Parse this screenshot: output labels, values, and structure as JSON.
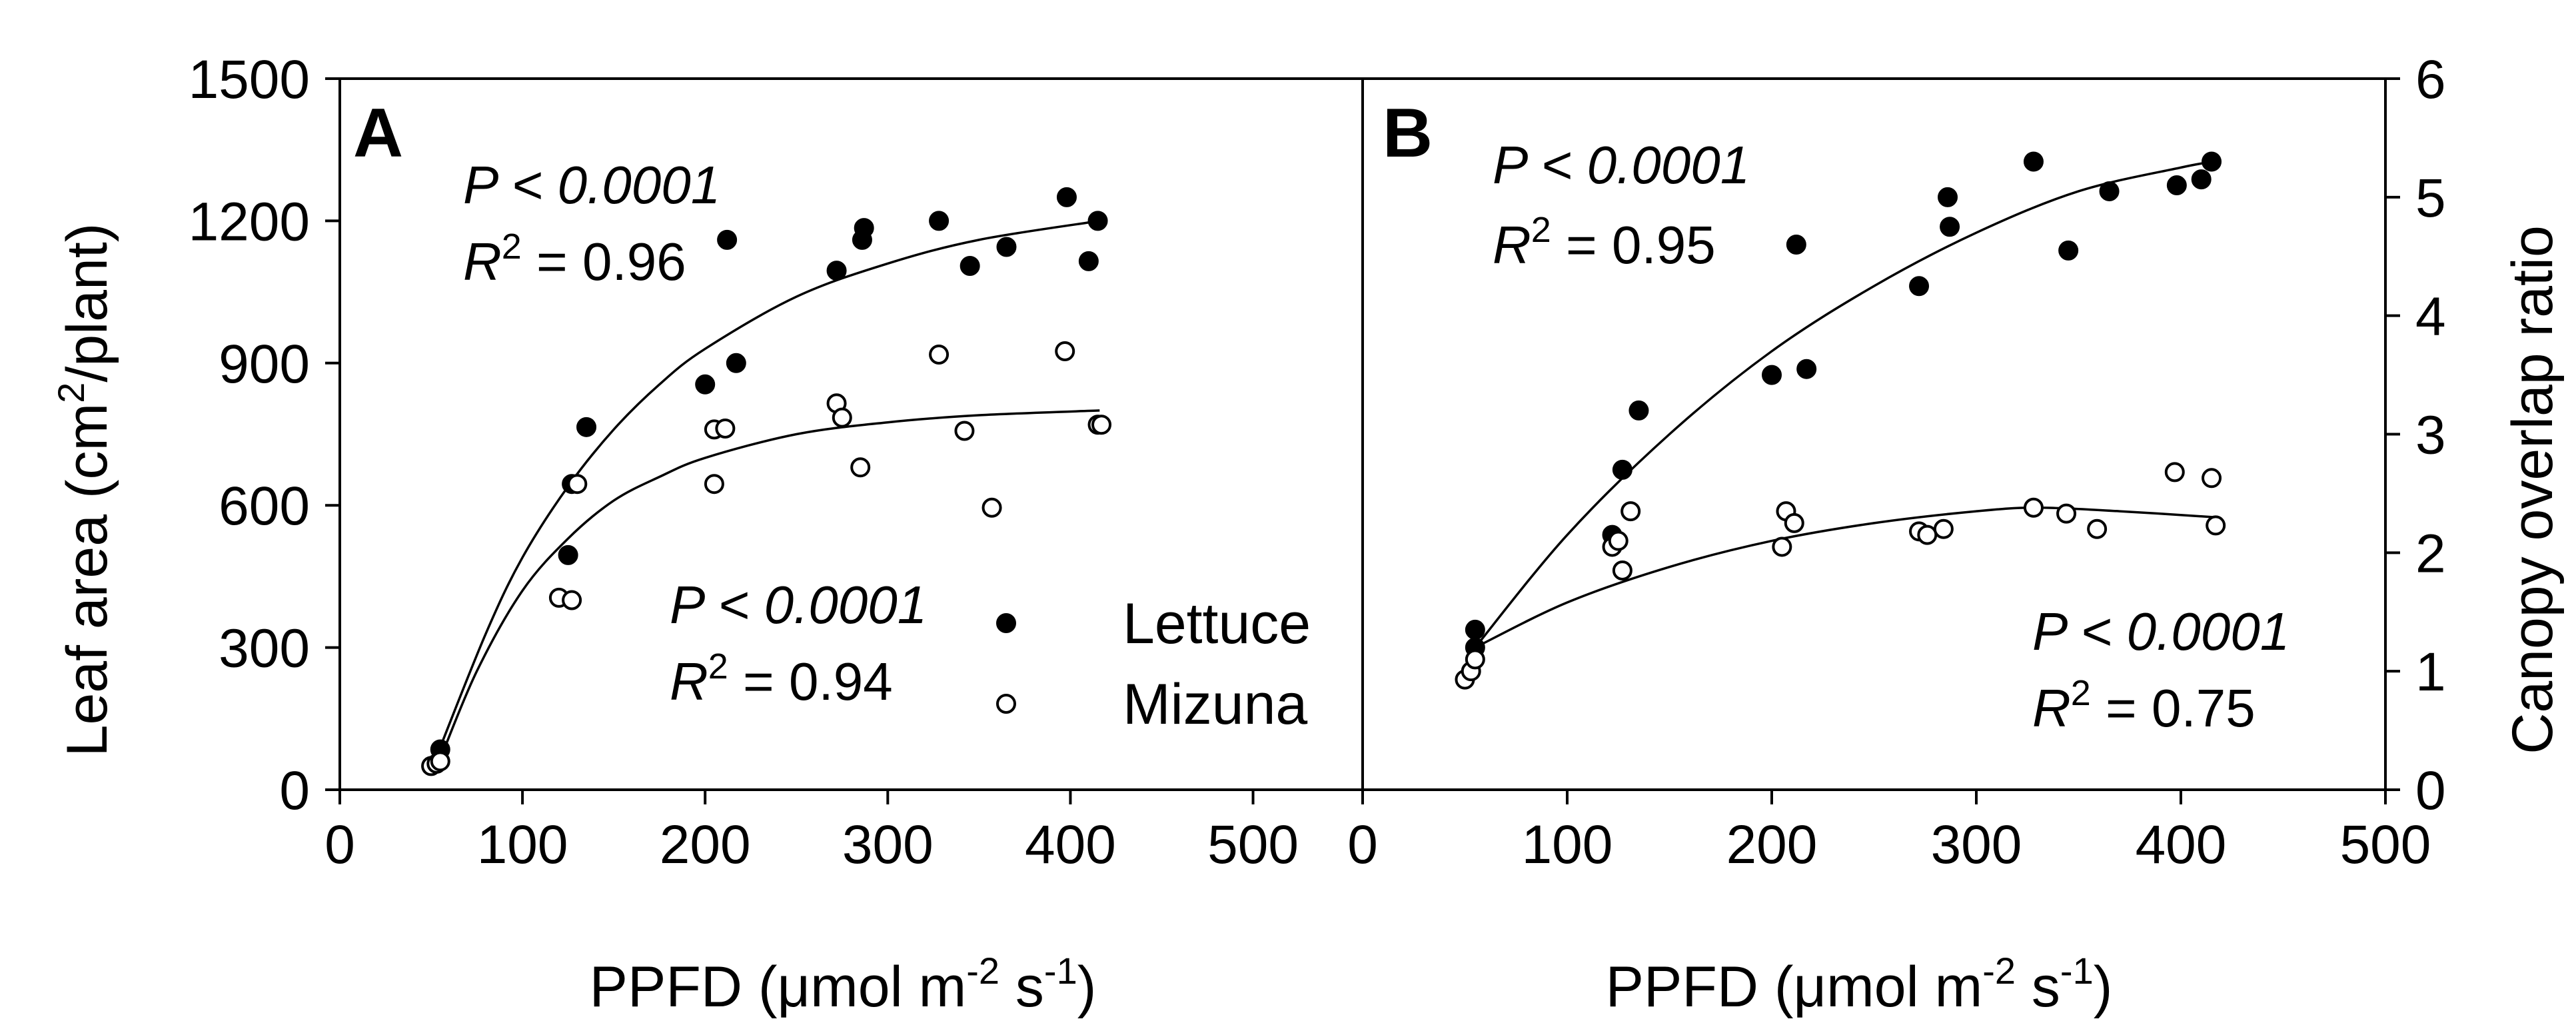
{
  "chart_data": [
    {
      "panel": "A",
      "type": "scatter",
      "xlabel": "PPFD",
      "ylabel": "Leaf area",
      "xlim": [
        0,
        560
      ],
      "ylim": [
        0,
        1500
      ],
      "xticks": [
        0,
        100,
        200,
        300,
        400,
        500
      ],
      "yticks": [
        0,
        300,
        600,
        900,
        1200,
        1500
      ],
      "series": [
        {
          "name": "Lettuce",
          "marker": "filled-circle",
          "points": [
            [
              55,
              85
            ],
            [
              125,
              495
            ],
            [
              127,
              645
            ],
            [
              135,
              765
            ],
            [
              200,
              855
            ],
            [
              212,
              1160
            ],
            [
              217,
              900
            ],
            [
              272,
              1095
            ],
            [
              286,
              1160
            ],
            [
              287,
              1185
            ],
            [
              328,
              1200
            ],
            [
              345,
              1105
            ],
            [
              365,
              1145
            ],
            [
              398,
              1250
            ],
            [
              410,
              1115
            ],
            [
              415,
              1200
            ]
          ],
          "fit": [
            [
              55,
              90
            ],
            [
              80,
              330
            ],
            [
              100,
              490
            ],
            [
              125,
              640
            ],
            [
              150,
              760
            ],
            [
              175,
              855
            ],
            [
              200,
              930
            ],
            [
              250,
              1040
            ],
            [
              300,
              1110
            ],
            [
              350,
              1160
            ],
            [
              416,
              1200
            ]
          ],
          "stats": {
            "p": "P < 0.0001",
            "r2_prefix": "R",
            "r2_sup": "2",
            "r2_value": " = 0.96"
          }
        },
        {
          "name": "Mizuna",
          "marker": "open-circle",
          "points": [
            [
              50,
              50
            ],
            [
              53,
              55
            ],
            [
              55,
              60
            ],
            [
              120,
              405
            ],
            [
              127,
              400
            ],
            [
              130,
              645
            ],
            [
              205,
              645
            ],
            [
              205,
              760
            ],
            [
              211,
              762
            ],
            [
              272,
              815
            ],
            [
              275,
              785
            ],
            [
              285,
              680
            ],
            [
              328,
              918
            ],
            [
              342,
              757
            ],
            [
              357,
              595
            ],
            [
              397,
              925
            ],
            [
              415,
              770
            ],
            [
              417,
              770
            ]
          ],
          "fit": [
            [
              55,
              65
            ],
            [
              75,
              250
            ],
            [
              100,
              420
            ],
            [
              125,
              530
            ],
            [
              150,
              610
            ],
            [
              175,
              660
            ],
            [
              200,
              700
            ],
            [
              250,
              750
            ],
            [
              300,
              775
            ],
            [
              350,
              790
            ],
            [
              416,
              800
            ]
          ],
          "stats": {
            "p": "P < 0.0001",
            "r2_prefix": "R",
            "r2_sup": "2",
            "r2_value": " = 0.94"
          }
        }
      ]
    },
    {
      "panel": "B",
      "type": "scatter",
      "xlabel": "PPFD",
      "ylabel": "Canopy overlap ratio",
      "xlim": [
        0,
        500
      ],
      "ylim": [
        0,
        6
      ],
      "xticks": [
        0,
        100,
        200,
        300,
        400,
        500
      ],
      "yticks": [
        0,
        1,
        2,
        3,
        4,
        5,
        6
      ],
      "series": [
        {
          "name": "Lettuce",
          "marker": "filled-circle",
          "points": [
            [
              55,
              1.2
            ],
            [
              55,
              1.35
            ],
            [
              122,
              2.15
            ],
            [
              127,
              2.7
            ],
            [
              135,
              3.2
            ],
            [
              200,
              3.5
            ],
            [
              212,
              4.6
            ],
            [
              217,
              3.55
            ],
            [
              272,
              4.25
            ],
            [
              286,
              5.0
            ],
            [
              287,
              4.75
            ],
            [
              328,
              5.3
            ],
            [
              345,
              4.55
            ],
            [
              365,
              5.05
            ],
            [
              398,
              5.1
            ],
            [
              410,
              5.15
            ],
            [
              415,
              5.3
            ]
          ],
          "fit": [
            [
              55,
              1.2
            ],
            [
              100,
              2.15
            ],
            [
              150,
              3.0
            ],
            [
              200,
              3.7
            ],
            [
              250,
              4.25
            ],
            [
              300,
              4.7
            ],
            [
              350,
              5.05
            ],
            [
              400,
              5.25
            ],
            [
              416,
              5.3
            ]
          ],
          "stats": {
            "p": "P < 0.0001",
            "r2_prefix": "R",
            "r2_sup": "2",
            "r2_value": " = 0.95"
          }
        },
        {
          "name": "Mizuna",
          "marker": "open-circle",
          "points": [
            [
              50,
              0.93
            ],
            [
              53,
              1.0
            ],
            [
              55,
              1.1
            ],
            [
              122,
              2.05
            ],
            [
              125,
              2.1
            ],
            [
              127,
              1.85
            ],
            [
              131,
              2.35
            ],
            [
              205,
              2.05
            ],
            [
              207,
              2.35
            ],
            [
              211,
              2.25
            ],
            [
              272,
              2.18
            ],
            [
              276,
              2.15
            ],
            [
              284,
              2.2
            ],
            [
              328,
              2.38
            ],
            [
              344,
              2.33
            ],
            [
              359,
              2.2
            ],
            [
              397,
              2.68
            ],
            [
              415,
              2.63
            ],
            [
              417,
              2.23
            ]
          ],
          "fit": [
            [
              55,
              1.2
            ],
            [
              100,
              1.58
            ],
            [
              150,
              1.88
            ],
            [
              200,
              2.1
            ],
            [
              250,
              2.25
            ],
            [
              300,
              2.35
            ],
            [
              330,
              2.38
            ],
            [
              370,
              2.35
            ],
            [
              416,
              2.3
            ]
          ],
          "stats": {
            "p": "P < 0.0001",
            "r2_prefix": "R",
            "r2_sup": "2",
            "r2_value": " = 0.75"
          }
        }
      ]
    }
  ],
  "figure_text": {
    "panel_a_letter": "A",
    "panel_b_letter": "B",
    "left_ylabel_main": "Leaf area (cm",
    "left_ylabel_sup": "2",
    "left_ylabel_end": "/plant)",
    "right_ylabel": "Canopy overlap ratio",
    "xlabel_main": "PPFD (",
    "xlabel_mu": "μ",
    "xlabel_mol": "mol m",
    "xlabel_sup1": "-2",
    "xlabel_s": " s",
    "xlabel_sup2": "-1",
    "xlabel_end": ")",
    "legend_lettuce": "Lettuce",
    "legend_mizuna": "Mizuna"
  }
}
